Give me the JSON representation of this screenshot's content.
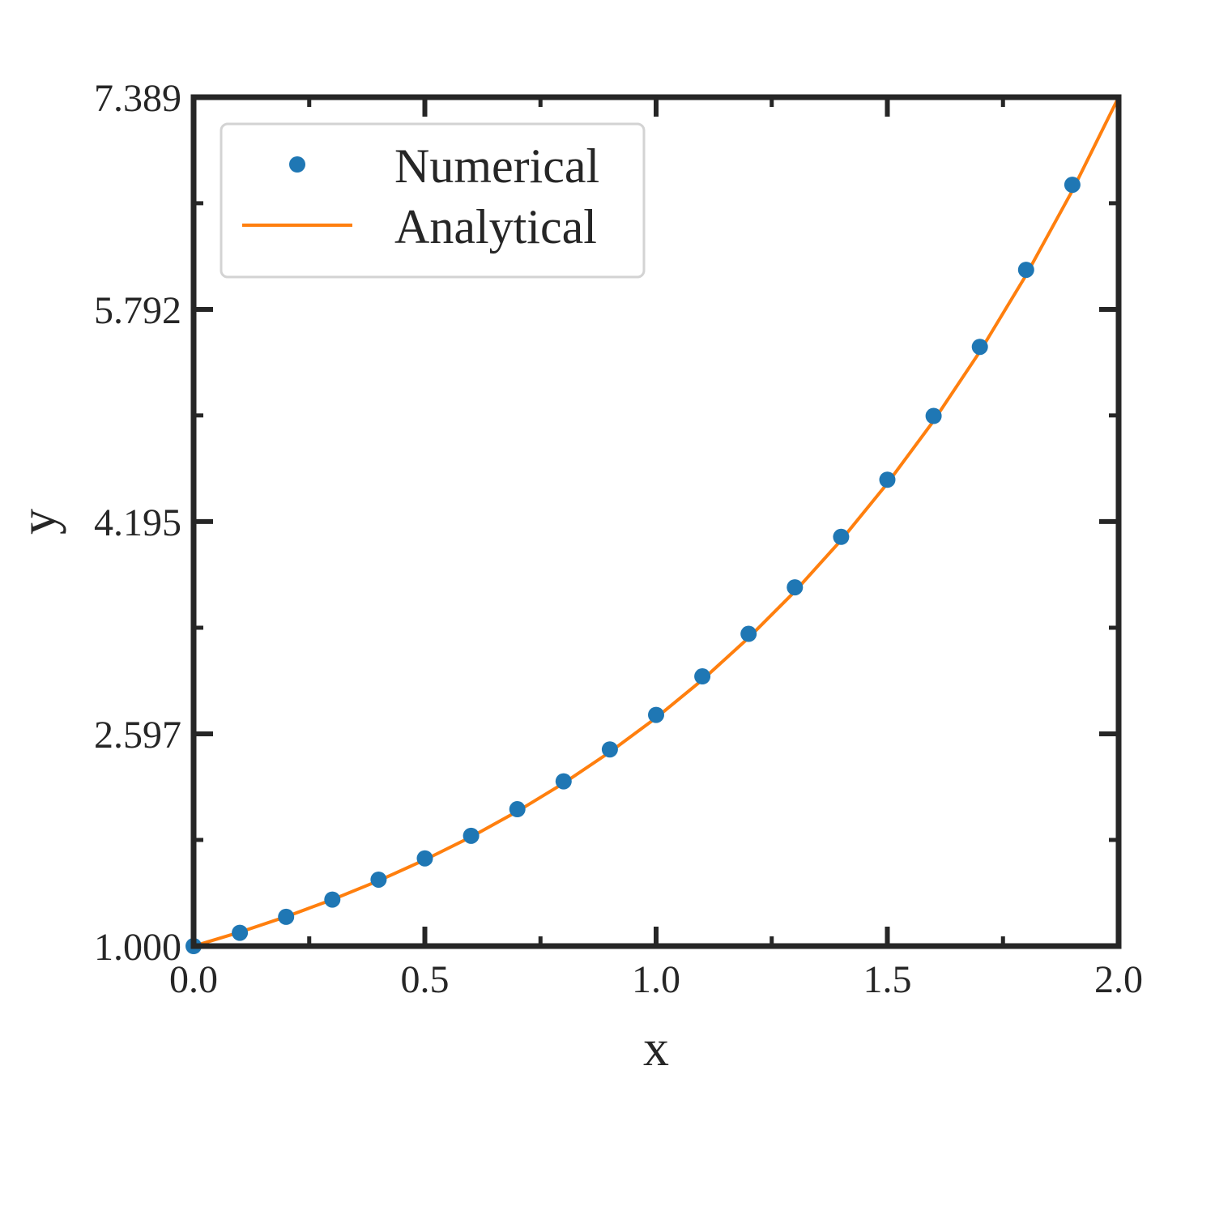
{
  "chart_data": {
    "type": "line",
    "xlabel": "x",
    "ylabel": "y",
    "xlim": [
      0.0,
      2.0
    ],
    "ylim": [
      1.0,
      7.389
    ],
    "x_ticks": [
      0.0,
      0.5,
      1.0,
      1.5,
      2.0
    ],
    "x_tick_labels": [
      "0.0",
      "0.5",
      "1.0",
      "1.5",
      "2.0"
    ],
    "x_minor_ticks": [
      0.25,
      0.75,
      1.25,
      1.75
    ],
    "y_ticks": [
      1.0,
      2.597,
      4.195,
      5.792,
      7.389
    ],
    "y_tick_labels": [
      "1.000",
      "2.597",
      "4.195",
      "5.792",
      "7.389"
    ],
    "y_minor_ticks": [
      1.799,
      3.396,
      4.994,
      6.591
    ],
    "grid": false,
    "legend_position": "top-left",
    "series": [
      {
        "name": "Numerical",
        "kind": "scatter",
        "color": "#1f77b4",
        "x": [
          0.0,
          0.1,
          0.2,
          0.3,
          0.4,
          0.5,
          0.6,
          0.7,
          0.8,
          0.9,
          1.0,
          1.1,
          1.2,
          1.3,
          1.4,
          1.5,
          1.6,
          1.7,
          1.8,
          1.9
        ],
        "y": [
          1.0,
          1.1,
          1.22,
          1.35,
          1.5,
          1.66,
          1.83,
          2.03,
          2.24,
          2.48,
          2.74,
          3.03,
          3.35,
          3.7,
          4.08,
          4.51,
          4.99,
          5.51,
          6.09,
          6.73
        ]
      },
      {
        "name": "Analytical",
        "kind": "line",
        "color": "#ff7f0e",
        "x": [
          0.0,
          0.1,
          0.2,
          0.3,
          0.4,
          0.5,
          0.6,
          0.7,
          0.8,
          0.9,
          1.0,
          1.1,
          1.2,
          1.3,
          1.4,
          1.5,
          1.6,
          1.7,
          1.8,
          1.9,
          2.0
        ],
        "y": [
          1.0,
          1.105,
          1.221,
          1.35,
          1.492,
          1.649,
          1.822,
          2.014,
          2.226,
          2.46,
          2.718,
          3.004,
          3.32,
          3.669,
          4.055,
          4.482,
          4.953,
          5.474,
          6.05,
          6.686,
          7.389
        ]
      }
    ]
  }
}
